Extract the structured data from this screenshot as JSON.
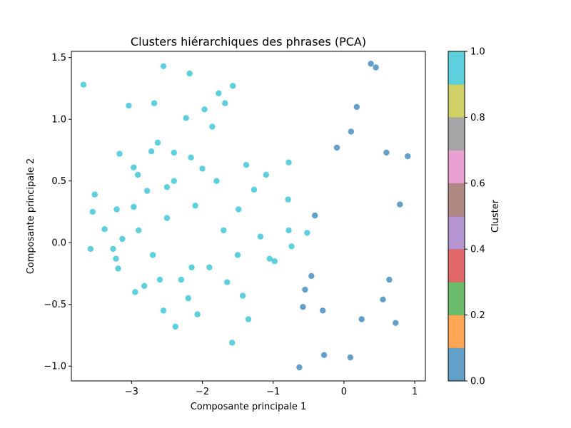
{
  "chart_data": {
    "type": "scatter",
    "title": "Clusters hiérarchiques des phrases (PCA)",
    "xlabel": "Composante principale 1",
    "ylabel": "Composante principale 2",
    "xlim": [
      -3.85,
      1.15
    ],
    "ylim": [
      -1.12,
      1.55
    ],
    "xticks": [
      -3,
      -2,
      -1,
      0,
      1
    ],
    "yticks": [
      -1.0,
      -0.5,
      0.0,
      0.5,
      1.0,
      1.5
    ],
    "xtick_labels": [
      "−3",
      "−2",
      "−1",
      "0",
      "1"
    ],
    "ytick_labels": [
      "−1.0",
      "−0.5",
      "0.0",
      "0.5",
      "1.0",
      "1.5"
    ],
    "grid": false,
    "colorbar": {
      "label": "Cluster",
      "range": [
        0.0,
        1.0
      ],
      "ticks": [
        "0.0",
        "0.2",
        "0.4",
        "0.6",
        "0.8",
        "1.0"
      ],
      "colors": [
        "#1f77b4",
        "#ff7f0e",
        "#2ca02c",
        "#d62728",
        "#9467bd",
        "#8c564b",
        "#e377c2",
        "#7f7f7f",
        "#bcbd22",
        "#17becf"
      ]
    },
    "series": [
      {
        "cluster": 1.0,
        "color": "#17becf",
        "points": [
          [
            -3.68,
            1.28
          ],
          [
            -3.52,
            0.39
          ],
          [
            -3.55,
            0.25
          ],
          [
            -3.38,
            0.11
          ],
          [
            -3.58,
            -0.05
          ],
          [
            -3.17,
            0.72
          ],
          [
            -3.21,
            0.27
          ],
          [
            -3.13,
            0.03
          ],
          [
            -3.22,
            -0.13
          ],
          [
            -3.26,
            -0.05
          ],
          [
            -3.19,
            -0.21
          ],
          [
            -3.04,
            1.11
          ],
          [
            -2.97,
            0.61
          ],
          [
            -2.91,
            0.55
          ],
          [
            -2.97,
            0.29
          ],
          [
            -2.95,
            -0.4
          ],
          [
            -2.78,
            0.42
          ],
          [
            -2.82,
            -0.35
          ],
          [
            -2.72,
            0.74
          ],
          [
            -2.68,
            1.13
          ],
          [
            -2.63,
            0.81
          ],
          [
            -2.55,
            1.43
          ],
          [
            -2.55,
            -0.55
          ],
          [
            -2.5,
            0.45
          ],
          [
            -2.4,
            0.73
          ],
          [
            -2.38,
            -0.68
          ],
          [
            -2.23,
            1.01
          ],
          [
            -2.18,
            1.37
          ],
          [
            -2.16,
            0.69
          ],
          [
            -2.15,
            -0.2
          ],
          [
            -2.07,
            -0.58
          ],
          [
            -1.97,
            1.08
          ],
          [
            -1.86,
            0.94
          ],
          [
            -1.77,
            1.21
          ],
          [
            -1.68,
            1.13
          ],
          [
            -1.65,
            -0.32
          ],
          [
            -1.57,
            1.27
          ],
          [
            -1.58,
            -0.81
          ],
          [
            -1.49,
            0.27
          ],
          [
            -1.43,
            -0.43
          ],
          [
            -1.38,
            0.63
          ],
          [
            -1.35,
            -0.62
          ],
          [
            -1.27,
            0.43
          ],
          [
            -1.18,
            0.05
          ],
          [
            -1.1,
            0.55
          ],
          [
            -1.05,
            -0.13
          ],
          [
            -0.98,
            -0.15
          ],
          [
            -0.78,
            0.65
          ],
          [
            -0.79,
            0.35
          ],
          [
            -0.78,
            0.1
          ],
          [
            -0.74,
            -0.03
          ],
          [
            -0.52,
            0.08
          ],
          [
            -2.9,
            0.1
          ],
          [
            -2.7,
            -0.1
          ],
          [
            -2.5,
            0.2
          ],
          [
            -2.3,
            -0.3
          ],
          [
            -2.1,
            0.3
          ],
          [
            -1.9,
            -0.2
          ],
          [
            -1.7,
            0.1
          ],
          [
            -1.5,
            -0.1
          ],
          [
            -2.4,
            0.5
          ],
          [
            -2.0,
            0.6
          ],
          [
            -1.8,
            0.5
          ],
          [
            -2.6,
            -0.3
          ],
          [
            -2.2,
            -0.45
          ]
        ]
      },
      {
        "cluster": 0.0,
        "color": "#1f77b4",
        "points": [
          [
            -0.63,
            -1.01
          ],
          [
            -0.28,
            -0.91
          ],
          [
            0.09,
            -0.93
          ],
          [
            0.73,
            -0.65
          ],
          [
            0.9,
            0.7
          ],
          [
            0.79,
            0.31
          ],
          [
            0.6,
            0.73
          ],
          [
            -0.41,
            0.22
          ],
          [
            -0.46,
            -0.27
          ],
          [
            -0.58,
            -0.52
          ],
          [
            -0.55,
            -0.38
          ],
          [
            0.64,
            -0.3
          ],
          [
            -0.1,
            0.77
          ],
          [
            0.45,
            1.42
          ],
          [
            0.38,
            1.45
          ],
          [
            0.1,
            0.9
          ],
          [
            0.18,
            1.1
          ],
          [
            0.55,
            -0.46
          ],
          [
            -0.3,
            -0.55
          ],
          [
            0.25,
            -0.62
          ]
        ]
      }
    ]
  }
}
